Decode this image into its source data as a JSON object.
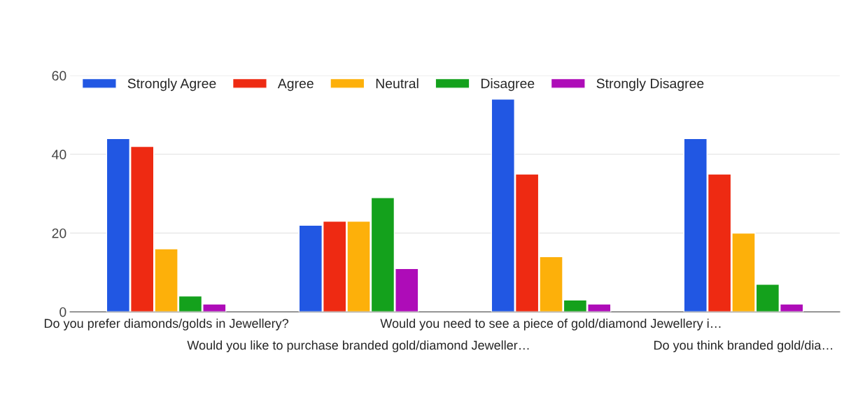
{
  "chart_data": {
    "type": "bar",
    "categories": [
      "Do you prefer diamonds/golds in Jewellery?",
      "Would you like to purchase branded gold/diamond Jeweller…",
      "Would you need to see a piece of gold/diamond Jewellery i…",
      "Do you think branded gold/dia…"
    ],
    "series": [
      {
        "name": "Strongly Agree",
        "color": "#2157e3",
        "values": [
          44,
          22,
          54,
          44
        ]
      },
      {
        "name": "Agree",
        "color": "#ee2a12",
        "values": [
          42,
          23,
          35,
          35
        ]
      },
      {
        "name": "Neutral",
        "color": "#fdb00a",
        "values": [
          16,
          23,
          14,
          20
        ]
      },
      {
        "name": "Disagree",
        "color": "#14a11c",
        "values": [
          4,
          29,
          3,
          7
        ]
      },
      {
        "name": "Strongly Disagree",
        "color": "#ae0cb8",
        "values": [
          2,
          11,
          2,
          2
        ]
      }
    ],
    "ylim": [
      0,
      60
    ],
    "yticks": [
      0,
      20,
      40,
      60
    ],
    "grid": "y",
    "legend": "top left"
  }
}
